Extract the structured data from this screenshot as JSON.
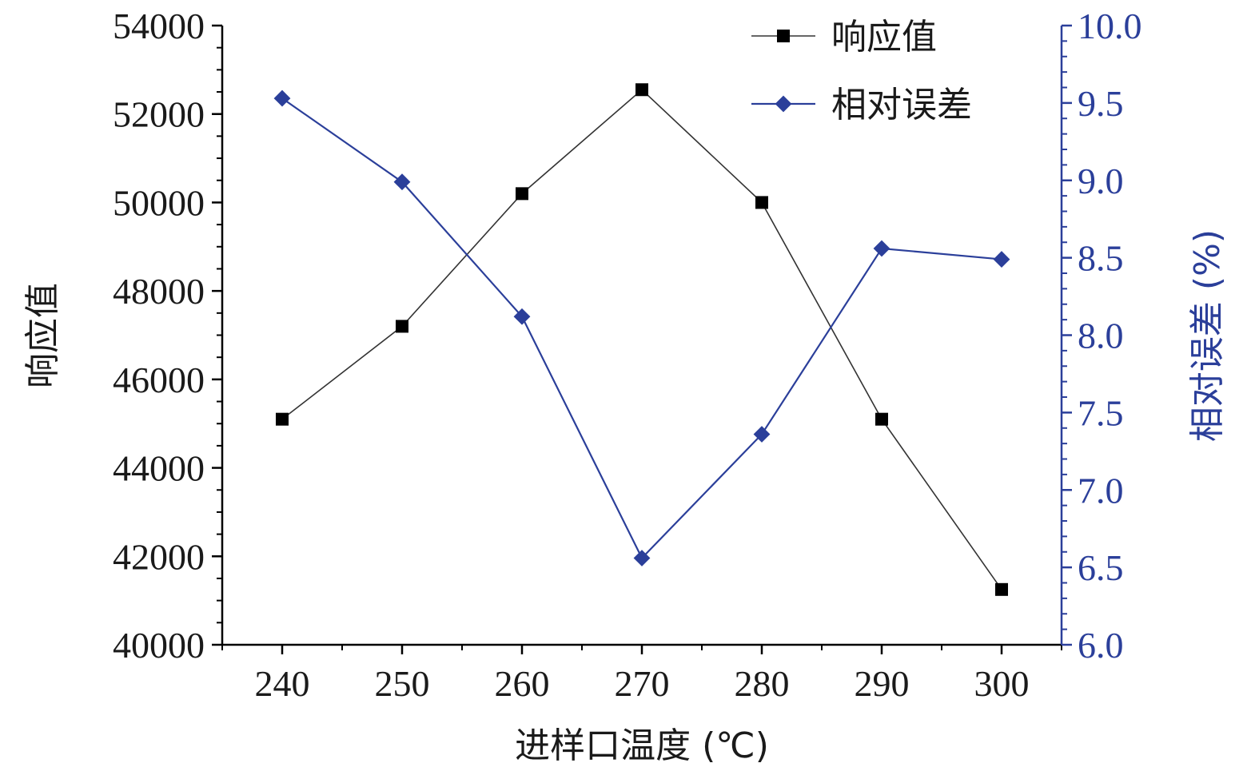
{
  "chart_data": {
    "type": "line",
    "title": "",
    "xlabel": "进样口温度 (℃)",
    "ylabel": "响应值",
    "y2label": "相对误差 (%)",
    "x": [
      240,
      250,
      260,
      270,
      280,
      290,
      300
    ],
    "xlim": [
      235,
      305
    ],
    "xticks": [
      "240",
      "250",
      "260",
      "270",
      "280",
      "290",
      "300"
    ],
    "ylim": [
      40000,
      54000
    ],
    "yticks": [
      "40000",
      "42000",
      "44000",
      "46000",
      "48000",
      "50000",
      "52000",
      "54000"
    ],
    "y2lim": [
      6.0,
      10.0
    ],
    "y2ticks": [
      "6.0",
      "6.5",
      "7.0",
      "7.5",
      "8.0",
      "8.5",
      "9.0",
      "9.5",
      "10.0"
    ],
    "grid": false,
    "legend_position": "top-right",
    "series": [
      {
        "name": "响应值",
        "axis": "left",
        "marker": "square",
        "color": "#000000",
        "line_color": "#333333",
        "values": [
          45100,
          47200,
          50200,
          52550,
          50000,
          45100,
          41250
        ]
      },
      {
        "name": "相对误差",
        "axis": "right",
        "marker": "diamond",
        "color": "#2b3f9a",
        "line_color": "#2b3f9a",
        "values": [
          9.53,
          8.99,
          8.12,
          6.56,
          7.36,
          8.56,
          8.49
        ]
      }
    ],
    "colors": {
      "left_axis": "#000000",
      "right_axis": "#2b3f9a"
    }
  }
}
